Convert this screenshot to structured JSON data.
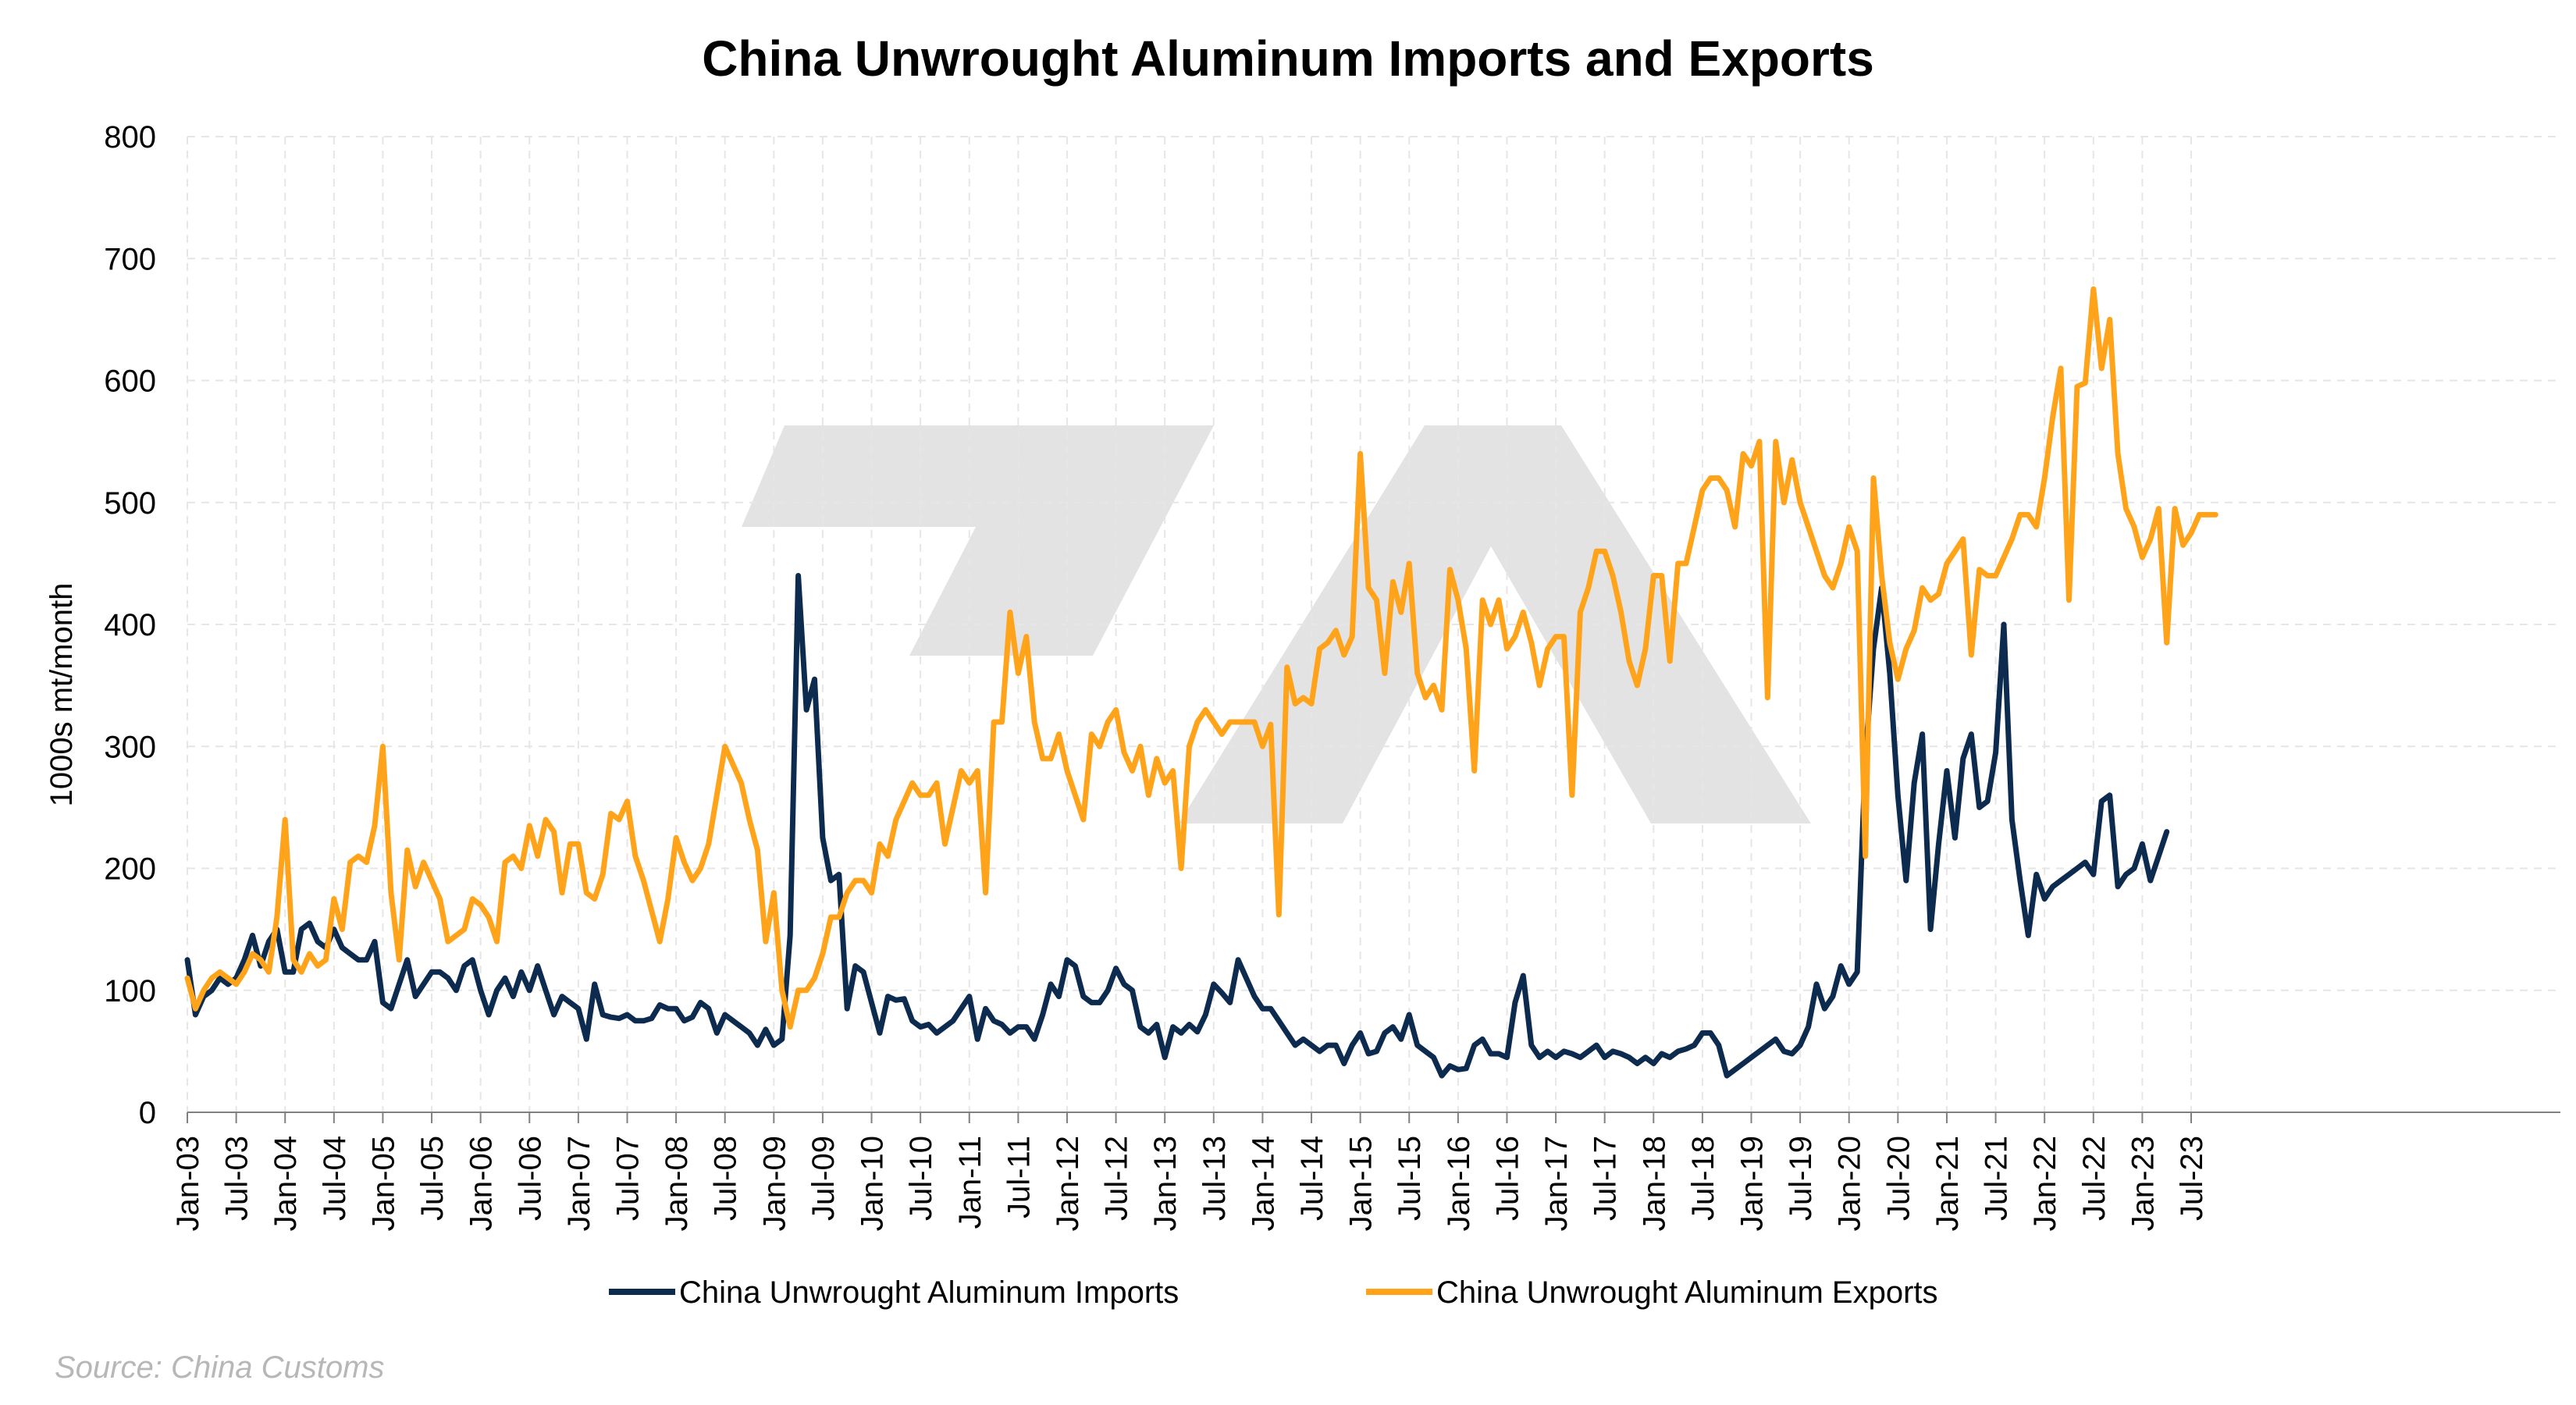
{
  "chart_data": {
    "type": "line",
    "title": "China Unwrought Aluminum Imports and Exports",
    "ylabel": "1000s mt/month",
    "xlabel": "",
    "ylim": [
      0,
      800
    ],
    "yticks": [
      0,
      100,
      200,
      300,
      400,
      500,
      600,
      700,
      800
    ],
    "x_start": "2003-01",
    "x_tick_labels": [
      "Jan-03",
      "Jul-03",
      "Jan-04",
      "Jul-04",
      "Jan-05",
      "Jul-05",
      "Jan-06",
      "Jul-06",
      "Jan-07",
      "Jul-07",
      "Jan-08",
      "Jul-08",
      "Jan-09",
      "Jul-09",
      "Jan-10",
      "Jul-10",
      "Jan-11",
      "Jul-11",
      "Jan-12",
      "Jul-12",
      "Jan-13",
      "Jul-13",
      "Jan-14",
      "Jul-14",
      "Jan-15",
      "Jul-15",
      "Jan-16",
      "Jul-16",
      "Jan-17",
      "Jul-17",
      "Jan-18",
      "Jul-18",
      "Jan-19",
      "Jul-19",
      "Jan-20",
      "Jul-20",
      "Jan-21",
      "Jul-21",
      "Jan-22",
      "Jul-22",
      "Jan-23",
      "Jul-23"
    ],
    "grid": true,
    "legend_position": "bottom",
    "series": [
      {
        "name": "China Unwrought Aluminum Imports",
        "color": "#0d2a4f",
        "values": [
          125,
          80,
          95,
          100,
          110,
          105,
          110,
          125,
          145,
          120,
          140,
          150,
          115,
          115,
          150,
          155,
          140,
          135,
          150,
          135,
          130,
          125,
          125,
          140,
          90,
          85,
          105,
          125,
          95,
          105,
          115,
          115,
          110,
          100,
          120,
          125,
          100,
          80,
          100,
          110,
          95,
          115,
          100,
          120,
          100,
          80,
          95,
          90,
          85,
          60,
          105,
          80,
          78,
          77,
          80,
          75,
          75,
          77,
          88,
          85,
          85,
          75,
          78,
          90,
          85,
          65,
          80,
          75,
          70,
          65,
          55,
          68,
          55,
          60,
          145,
          440,
          330,
          355,
          225,
          190,
          195,
          85,
          120,
          115,
          90,
          65,
          95,
          92,
          93,
          75,
          70,
          72,
          65,
          70,
          75,
          85,
          95,
          60,
          85,
          75,
          72,
          65,
          70,
          70,
          60,
          80,
          105,
          95,
          125,
          120,
          95,
          90,
          90,
          100,
          118,
          105,
          100,
          70,
          65,
          72,
          45,
          70,
          65,
          72,
          66,
          80,
          105,
          98,
          90,
          125,
          110,
          95,
          85,
          85,
          75,
          65,
          55,
          60,
          55,
          50,
          55,
          55,
          40,
          55,
          65,
          48,
          50,
          65,
          70,
          60,
          80,
          55,
          50,
          45,
          30,
          38,
          35,
          36,
          55,
          60,
          48,
          48,
          45,
          90,
          112,
          55,
          45,
          50,
          45,
          50,
          48,
          45,
          50,
          55,
          45,
          50,
          48,
          45,
          40,
          45,
          40,
          48,
          45,
          50,
          52,
          55,
          65,
          65,
          55,
          30,
          35,
          40,
          45,
          50,
          55,
          60,
          50,
          48,
          55,
          70,
          105,
          85,
          95,
          120,
          105,
          115,
          290,
          380,
          430,
          360,
          260,
          190,
          270,
          310,
          150,
          220,
          280,
          225,
          290,
          310,
          250,
          255,
          295,
          400,
          240,
          190,
          145,
          195,
          175,
          185,
          190,
          195,
          200,
          205,
          195,
          255,
          260,
          185,
          195,
          200,
          220,
          190,
          210,
          230
        ],
        "labels": []
      },
      {
        "name": "China Unwrought Aluminum Exports",
        "color": "#ffa31a",
        "values": [
          110,
          85,
          100,
          110,
          115,
          110,
          105,
          115,
          130,
          125,
          115,
          160,
          240,
          125,
          115,
          130,
          120,
          125,
          175,
          150,
          205,
          210,
          205,
          235,
          300,
          180,
          125,
          215,
          185,
          205,
          190,
          175,
          140,
          145,
          150,
          175,
          170,
          160,
          140,
          205,
          210,
          200,
          235,
          210,
          240,
          230,
          180,
          220,
          220,
          180,
          175,
          195,
          245,
          240,
          255,
          210,
          190,
          165,
          140,
          175,
          225,
          205,
          190,
          200,
          220,
          260,
          300,
          285,
          270,
          240,
          215,
          140,
          180,
          100,
          70,
          100,
          100,
          110,
          130,
          160,
          160,
          180,
          190,
          190,
          180,
          220,
          210,
          240,
          255,
          270,
          260,
          260,
          270,
          220,
          250,
          280,
          270,
          280,
          180,
          320,
          320,
          410,
          360,
          390,
          320,
          290,
          290,
          310,
          280,
          260,
          240,
          310,
          300,
          320,
          330,
          295,
          280,
          300,
          260,
          290,
          270,
          280,
          200,
          300,
          320,
          330,
          320,
          310,
          320,
          320,
          320,
          320,
          300,
          318,
          162,
          365,
          335,
          340,
          335,
          380,
          385,
          395,
          375,
          390,
          540,
          430,
          420,
          360,
          435,
          410,
          450,
          360,
          340,
          350,
          330,
          445,
          420,
          380,
          280,
          420,
          400,
          420,
          380,
          390,
          410,
          385,
          350,
          380,
          390,
          390,
          260,
          410,
          430,
          460,
          460,
          440,
          410,
          370,
          350,
          380,
          440,
          440,
          370,
          450,
          450,
          480,
          510,
          520,
          520,
          510,
          480,
          540,
          530,
          550,
          340,
          550,
          500,
          535,
          500,
          480,
          460,
          440,
          430,
          450,
          480,
          460,
          210,
          520,
          440,
          385,
          355,
          380,
          395,
          430,
          420,
          425,
          450,
          460,
          470,
          375,
          445,
          440,
          440,
          455,
          470,
          490,
          490,
          480,
          520,
          570,
          610,
          420,
          595,
          598,
          675,
          610,
          650,
          540,
          495,
          480,
          455,
          470,
          495,
          385,
          495,
          465,
          475,
          490,
          490,
          490
        ],
        "labels": []
      }
    ]
  },
  "source": "Source: China Customs",
  "watermark": "logo-7A"
}
